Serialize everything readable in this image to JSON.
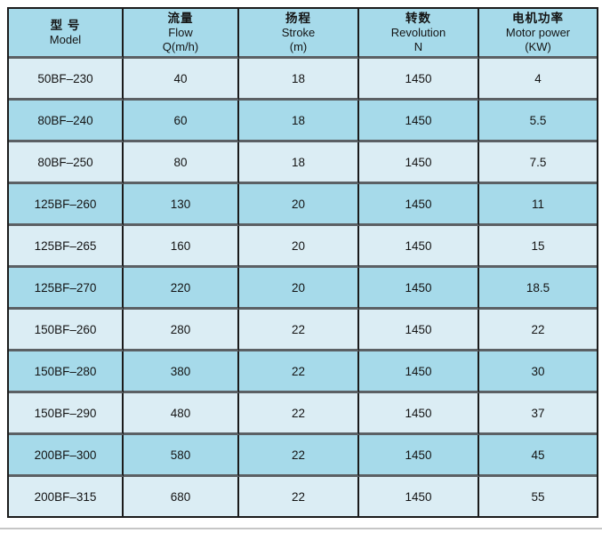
{
  "table": {
    "header": {
      "columns": [
        {
          "zh": "型 号",
          "en": "Model",
          "unit": ""
        },
        {
          "zh": "流量",
          "en": "Flow",
          "unit": "Q(m/h)"
        },
        {
          "zh": "扬程",
          "en": "Stroke",
          "unit": "(m)"
        },
        {
          "zh": "转数",
          "en": "Revolution",
          "unit": "N"
        },
        {
          "zh": "电机功率",
          "en": "Motor power",
          "unit": "(KW)"
        }
      ]
    },
    "rows": [
      {
        "model": "50BF–230",
        "flow": "40",
        "stroke": "18",
        "revolution": "1450",
        "motor_power": "4"
      },
      {
        "model": "80BF–240",
        "flow": "60",
        "stroke": "18",
        "revolution": "1450",
        "motor_power": "5.5"
      },
      {
        "model": "80BF–250",
        "flow": "80",
        "stroke": "18",
        "revolution": "1450",
        "motor_power": "7.5"
      },
      {
        "model": "125BF–260",
        "flow": "130",
        "stroke": "20",
        "revolution": "1450",
        "motor_power": "11"
      },
      {
        "model": "125BF–265",
        "flow": "160",
        "stroke": "20",
        "revolution": "1450",
        "motor_power": "15"
      },
      {
        "model": "125BF–270",
        "flow": "220",
        "stroke": "20",
        "revolution": "1450",
        "motor_power": "18.5"
      },
      {
        "model": "150BF–260",
        "flow": "280",
        "stroke": "22",
        "revolution": "1450",
        "motor_power": "22"
      },
      {
        "model": "150BF–280",
        "flow": "380",
        "stroke": "22",
        "revolution": "1450",
        "motor_power": "30"
      },
      {
        "model": "150BF–290",
        "flow": "480",
        "stroke": "22",
        "revolution": "1450",
        "motor_power": "37"
      },
      {
        "model": "200BF–300",
        "flow": "580",
        "stroke": "22",
        "revolution": "1450",
        "motor_power": "45"
      },
      {
        "model": "200BF–315",
        "flow": "680",
        "stroke": "22",
        "revolution": "1450",
        "motor_power": "55"
      }
    ],
    "colors": {
      "header_bg": "#a6daea",
      "row_light_bg": "#dbedf4",
      "row_dark_bg": "#a6daea",
      "grid_vertical": "#1b1b1b",
      "grid_horizontal": "#5b6064",
      "text": "#141414",
      "bottom_rule": "#c6c6c6"
    }
  }
}
